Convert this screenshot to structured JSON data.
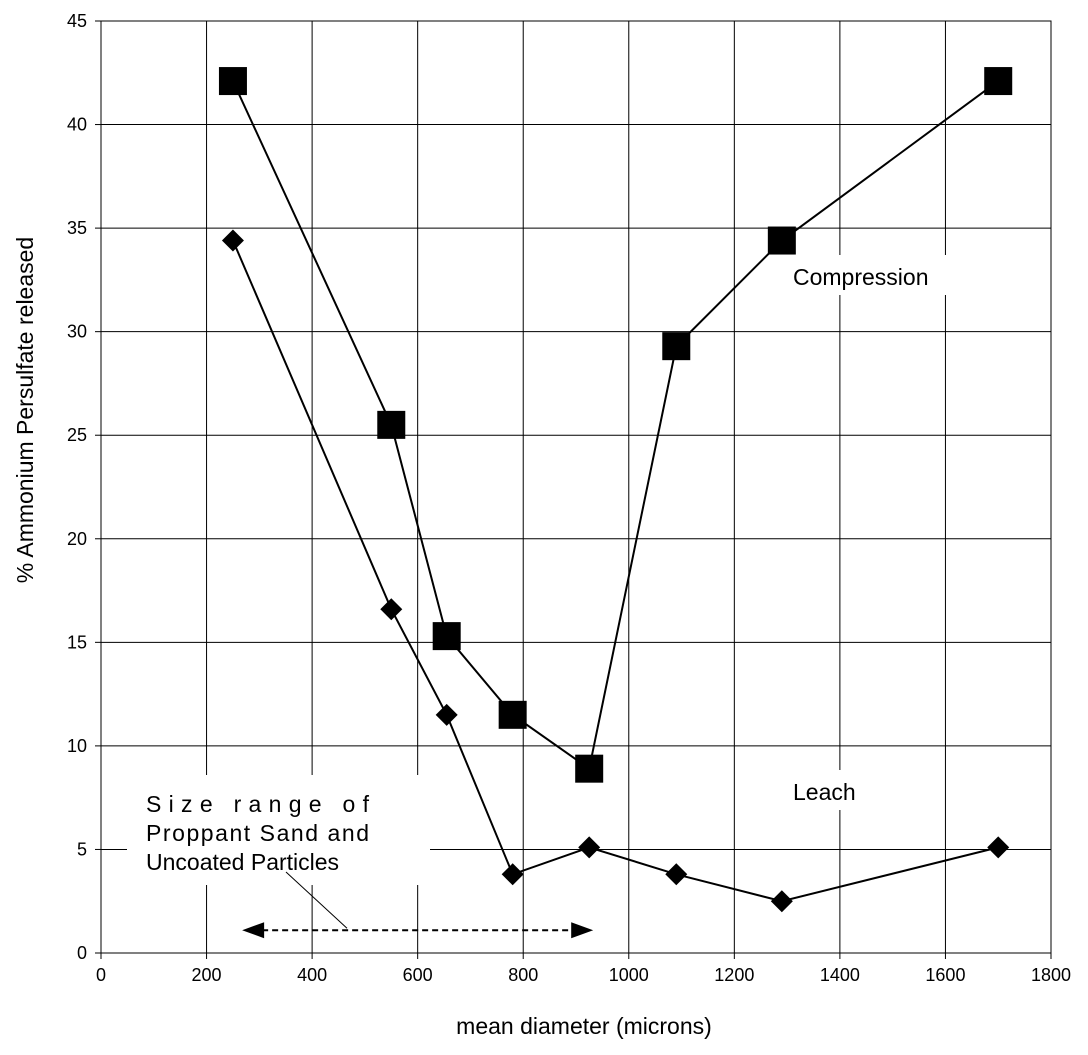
{
  "chart_data": {
    "type": "line",
    "xlabel": "mean diameter (microns)",
    "ylabel": "% Ammonium Persulfate released",
    "xlim": [
      0,
      1800
    ],
    "ylim": [
      0,
      45
    ],
    "xticks": [
      0,
      200,
      400,
      600,
      800,
      1000,
      1200,
      1400,
      1600,
      1800
    ],
    "yticks": [
      0,
      5,
      10,
      15,
      20,
      25,
      30,
      35,
      40,
      45
    ],
    "grid": true,
    "series": [
      {
        "name": "Compression",
        "marker": "square",
        "x": [
          250,
          550,
          655,
          780,
          925,
          1090,
          1290,
          1700
        ],
        "y": [
          42.1,
          25.5,
          15.3,
          11.5,
          8.9,
          29.3,
          34.4,
          42.1
        ]
      },
      {
        "name": "Leach",
        "marker": "diamond",
        "x": [
          250,
          550,
          655,
          780,
          925,
          1090,
          1290,
          1700
        ],
        "y": [
          34.4,
          16.6,
          11.5,
          3.8,
          5.1,
          3.8,
          2.5,
          5.1
        ]
      }
    ],
    "annotations": {
      "range_lines": [
        "Size range of",
        "Proppant Sand and",
        "Uncoated Particles"
      ],
      "range_x": [
        275,
        925
      ],
      "range_y": 1.1
    }
  }
}
